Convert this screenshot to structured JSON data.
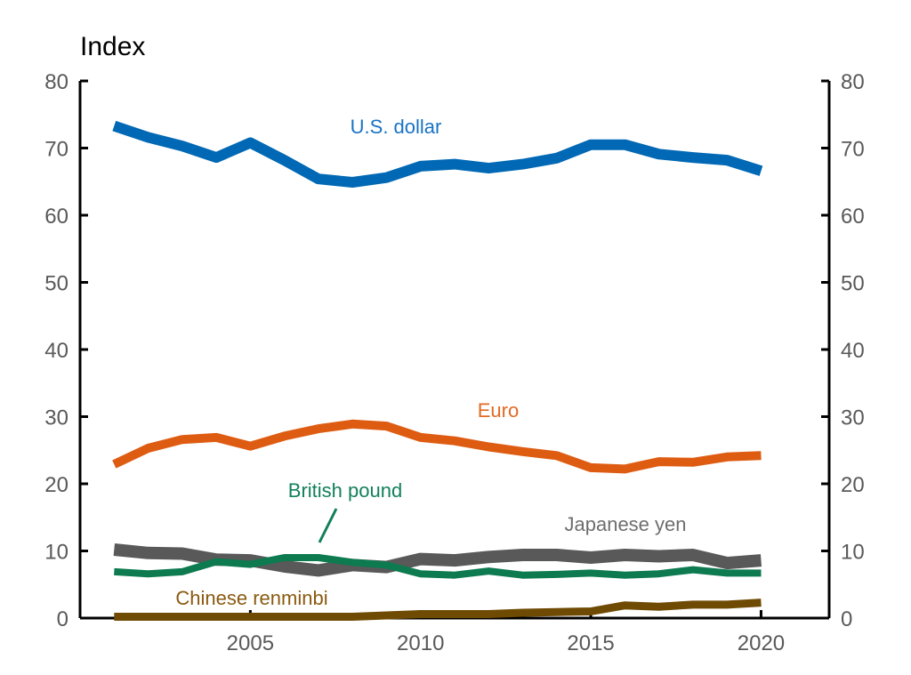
{
  "chart_data": {
    "type": "line",
    "title": "",
    "xlabel": "",
    "ylabel": "Index",
    "xlim": [
      2000,
      2022
    ],
    "ylim": [
      0,
      80
    ],
    "x_ticks": [
      2005,
      2010,
      2015,
      2020
    ],
    "y_ticks": [
      0,
      10,
      20,
      30,
      40,
      50,
      60,
      70,
      80
    ],
    "grid": false,
    "legend": "inline-labels",
    "x": [
      2001,
      2002,
      2003,
      2004,
      2005,
      2006,
      2007,
      2008,
      2009,
      2010,
      2011,
      2012,
      2013,
      2014,
      2015,
      2016,
      2017,
      2018,
      2019,
      2020
    ],
    "series": [
      {
        "name": "U.S. dollar",
        "color": "#0068b4",
        "values": [
          73.3,
          71.6,
          70.3,
          68.6,
          70.8,
          68.2,
          65.4,
          64.9,
          65.6,
          67.3,
          67.6,
          67.0,
          67.6,
          68.5,
          70.5,
          70.5,
          69.1,
          68.6,
          68.2,
          66.6
        ]
      },
      {
        "name": "Euro",
        "color": "#de5c12",
        "values": [
          22.9,
          25.3,
          26.6,
          26.9,
          25.6,
          27.1,
          28.2,
          28.9,
          28.6,
          26.9,
          26.4,
          25.5,
          24.8,
          24.2,
          22.4,
          22.2,
          23.3,
          23.2,
          24.0,
          24.2
        ]
      },
      {
        "name": "Japanese yen",
        "color": "#595959",
        "values": [
          10.2,
          9.7,
          9.6,
          8.7,
          8.6,
          7.7,
          7.1,
          7.9,
          7.6,
          8.8,
          8.6,
          9.1,
          9.4,
          9.4,
          9.0,
          9.4,
          9.2,
          9.4,
          8.2,
          8.6
        ]
      },
      {
        "name": "British pound",
        "color": "#0d7a4f",
        "values": [
          6.9,
          6.6,
          6.9,
          8.4,
          8.0,
          9.0,
          9.0,
          8.3,
          7.9,
          6.6,
          6.4,
          7.0,
          6.4,
          6.5,
          6.7,
          6.4,
          6.6,
          7.2,
          6.7,
          6.7
        ]
      },
      {
        "name": "Chinese renminbi",
        "color": "#6f4a03",
        "values": [
          0.2,
          0.2,
          0.2,
          0.2,
          0.2,
          0.2,
          0.2,
          0.2,
          0.4,
          0.6,
          0.6,
          0.6,
          0.8,
          0.9,
          1.0,
          1.9,
          1.7,
          2.0,
          2.0,
          2.3
        ]
      }
    ]
  },
  "label_colors": {
    "U.S. dollar": "#1873c4",
    "Euro": "#e06a23",
    "Japanese yen": "#6e6e6e",
    "British pound": "#12805a",
    "Chinese renminbi": "#8a5a10"
  }
}
